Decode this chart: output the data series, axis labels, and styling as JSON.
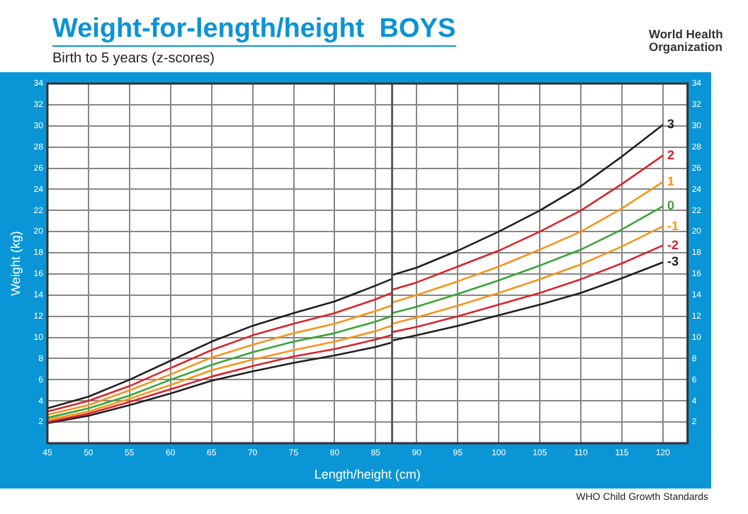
{
  "chart_data": {
    "type": "line",
    "title": "Weight-for-length/height  BOYS",
    "subtitle": "Birth to 5 years (z-scores)",
    "xlabel": "Length/height (cm)",
    "ylabel": "Weight (kg)",
    "annotations": [
      "World Health Organization",
      "WHO Child Growth Standards"
    ],
    "x": [
      45,
      50,
      55,
      60,
      65,
      70,
      75,
      80,
      85,
      86.9,
      87,
      90,
      95,
      100,
      105,
      110,
      115,
      120
    ],
    "series": [
      {
        "name": "3",
        "color": "#231f20",
        "values": [
          3.3,
          4.4,
          6.0,
          7.8,
          9.6,
          11.1,
          12.3,
          13.4,
          14.9,
          15.5,
          15.9,
          16.6,
          18.2,
          20.0,
          22.0,
          24.3,
          27.1,
          30.1
        ]
      },
      {
        "name": "2",
        "color": "#d7262e",
        "values": [
          3.0,
          4.0,
          5.4,
          7.1,
          8.8,
          10.2,
          11.3,
          12.3,
          13.6,
          14.2,
          14.5,
          15.2,
          16.7,
          18.2,
          20.0,
          22.0,
          24.5,
          27.2
        ]
      },
      {
        "name": "1",
        "color": "#f7941d",
        "values": [
          2.7,
          3.6,
          5.0,
          6.5,
          8.1,
          9.3,
          10.4,
          11.3,
          12.5,
          13.0,
          13.3,
          14.0,
          15.3,
          16.7,
          18.3,
          20.0,
          22.2,
          24.7
        ]
      },
      {
        "name": "0",
        "color": "#3aa538",
        "values": [
          2.4,
          3.3,
          4.5,
          6.0,
          7.4,
          8.6,
          9.6,
          10.4,
          11.5,
          12.0,
          12.3,
          12.9,
          14.1,
          15.4,
          16.8,
          18.3,
          20.2,
          22.4
        ]
      },
      {
        "name": "-1",
        "color": "#f7941d",
        "values": [
          2.2,
          3.0,
          4.2,
          5.5,
          6.9,
          7.9,
          8.8,
          9.6,
          10.6,
          11.1,
          11.3,
          11.9,
          13.0,
          14.2,
          15.5,
          16.9,
          18.6,
          20.5
        ]
      },
      {
        "name": "-2",
        "color": "#d7262e",
        "values": [
          2.0,
          2.8,
          3.9,
          5.1,
          6.3,
          7.3,
          8.2,
          8.9,
          9.8,
          10.2,
          10.5,
          11.0,
          12.0,
          13.1,
          14.2,
          15.5,
          17.0,
          18.7
        ]
      },
      {
        "name": "-3",
        "color": "#231f20",
        "values": [
          1.9,
          2.6,
          3.6,
          4.7,
          5.9,
          6.8,
          7.6,
          8.3,
          9.1,
          9.5,
          9.7,
          10.2,
          11.1,
          12.1,
          13.1,
          14.2,
          15.6,
          17.1
        ]
      }
    ],
    "xlim": [
      45,
      123
    ],
    "xticks": [
      45,
      50,
      55,
      60,
      65,
      70,
      75,
      80,
      85,
      90,
      95,
      100,
      105,
      110,
      115,
      120
    ],
    "ylim": [
      0,
      34
    ],
    "yticks": [
      2,
      4,
      6,
      8,
      10,
      12,
      14,
      16,
      18,
      20,
      22,
      24,
      26,
      28,
      30,
      32,
      34
    ],
    "y2lim": [
      0,
      34
    ],
    "y2ticks": [
      2,
      4,
      6,
      8,
      10,
      12,
      14,
      16,
      18,
      20,
      22,
      24,
      26,
      28,
      30,
      32,
      34
    ],
    "ref_lines": [
      {
        "axis": "x",
        "value": 87
      }
    ],
    "grid": true,
    "legend": false,
    "marker": "none",
    "line_style": "solid"
  }
}
